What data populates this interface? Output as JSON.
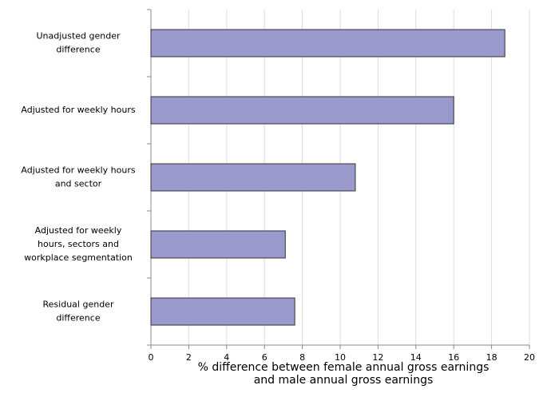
{
  "chart_data": {
    "type": "bar",
    "orientation": "horizontal",
    "categories": [
      "Unadjusted gender\ndifference",
      "Adjusted for weekly hours",
      "Adjusted for weekly hours\nand sector",
      "Adjusted for weekly\nhours, sectors and\nworkplace segmentation",
      "Residual gender\ndifference"
    ],
    "values": [
      18.7,
      16.0,
      10.8,
      7.1,
      7.6
    ],
    "color": "#9999cc",
    "x_label": "% difference between female annual gross earnings\nand male annual gross earnings",
    "xlim": [
      0,
      20
    ],
    "xticks": [
      0,
      2,
      4,
      6,
      8,
      10,
      12,
      14,
      16,
      18,
      20
    ],
    "grid": true
  }
}
